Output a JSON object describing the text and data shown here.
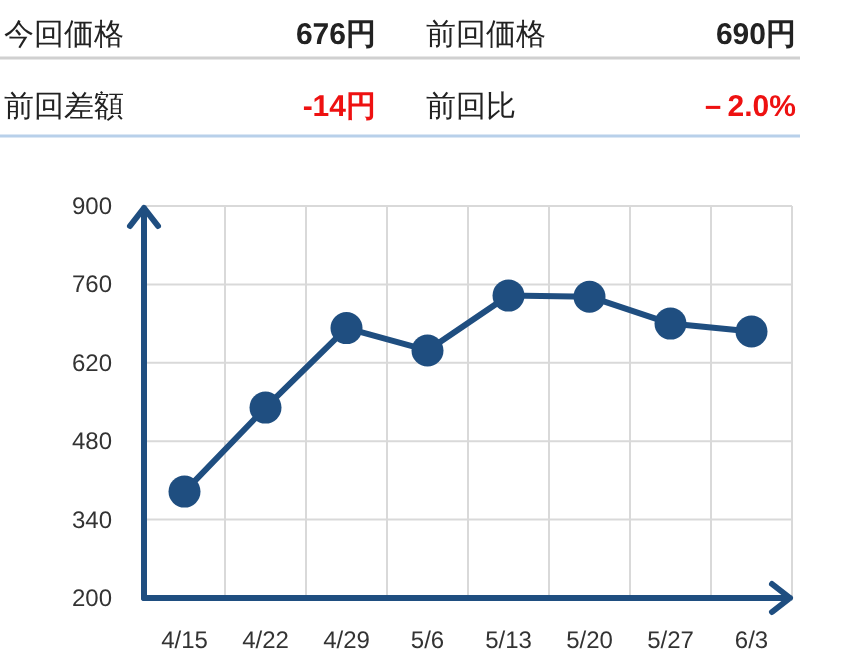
{
  "chart_data": [
    {
      "type": "other",
      "annotations": [
        "今回価格",
        "676円",
        "前回価格",
        "690円",
        "前回差額",
        "-14円",
        "前回比",
        "－2.0%"
      ]
    },
    {
      "type": "line",
      "categories": [
        "4/15",
        "4/22",
        "4/29",
        "5/6",
        "5/13",
        "5/20",
        "5/27",
        "6/3"
      ],
      "series": [
        {
          "color": "#1f4e80",
          "values": [
            390,
            540,
            682,
            642,
            740,
            738,
            690,
            676
          ]
        }
      ],
      "ylim": [
        200,
        900
      ],
      "yticks": [
        200,
        340,
        480,
        620,
        760,
        900
      ],
      "grid": true,
      "marker": "circle",
      "line_style": "solid"
    }
  ]
}
